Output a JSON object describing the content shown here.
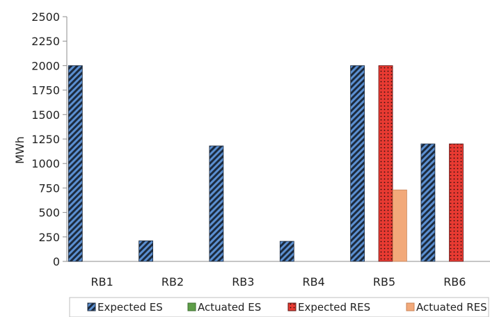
{
  "chart_data": {
    "type": "bar",
    "title": "",
    "xlabel": "",
    "ylabel": "MWh",
    "ylim": [
      0,
      2500
    ],
    "yticks": [
      0,
      250,
      500,
      750,
      1000,
      1250,
      1500,
      1750,
      2000,
      2250,
      2500
    ],
    "grid": false,
    "legend_position": "bottom",
    "categories": [
      "RB1",
      "RB2",
      "RB3",
      "RB4",
      "RB5",
      "RB6"
    ],
    "series": [
      {
        "name": "Expected ES",
        "values": [
          2000,
          210,
          1180,
          205,
          2000,
          1200
        ],
        "color": "#5b8fd1",
        "pattern": "diagonal-stripes-dark"
      },
      {
        "name": "Actuated ES",
        "values": [
          0,
          0,
          0,
          0,
          0,
          0
        ],
        "color": "#5e9e48",
        "pattern": "solid"
      },
      {
        "name": "Expected RES",
        "values": [
          0,
          0,
          0,
          0,
          2000,
          1200
        ],
        "color": "#e83a32",
        "pattern": "dotted-dark"
      },
      {
        "name": "Actuated RES",
        "values": [
          0,
          0,
          0,
          0,
          730,
          0
        ],
        "color": "#f2a97a",
        "pattern": "solid"
      }
    ]
  }
}
